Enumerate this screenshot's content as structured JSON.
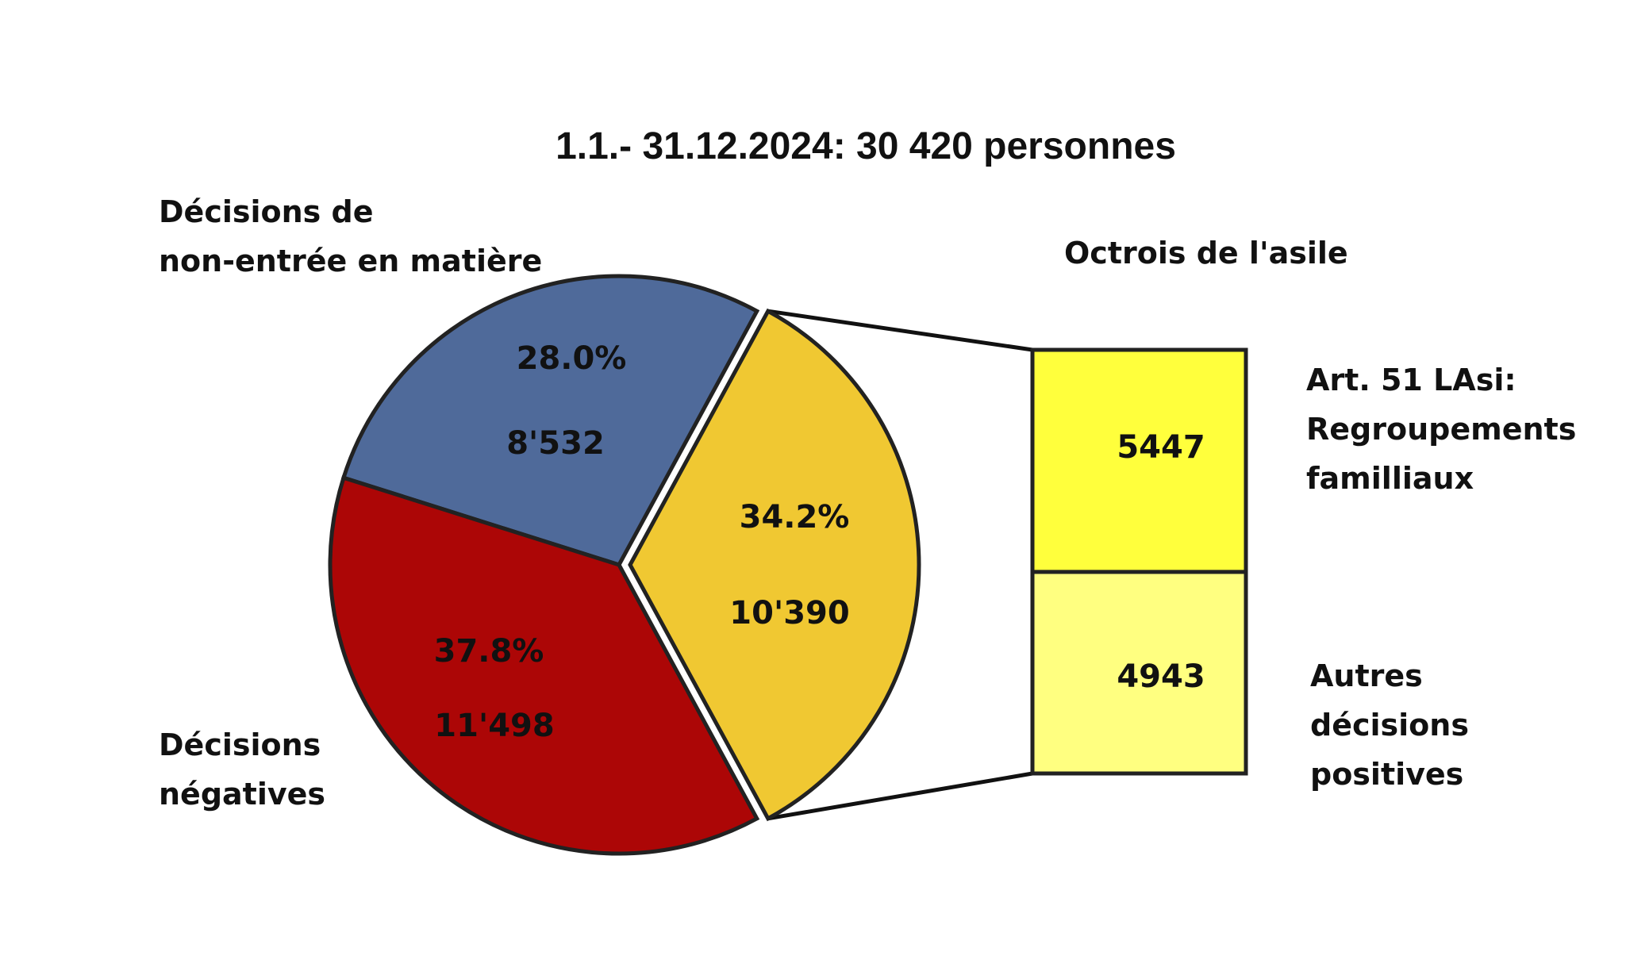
{
  "chart_data": {
    "type": "pie",
    "title": "1.1.- 31.12.2024: 30 420 personnes",
    "slices": [
      {
        "label_lines": [
          "Décisions de",
          "non-entrée en matière"
        ],
        "percent": "28.0%",
        "count": "8'532",
        "value": 8532,
        "color": "#4f6a9a"
      },
      {
        "label_lines": [
          "Décisions",
          "négatives"
        ],
        "percent": "37.8%",
        "count": "11'498",
        "value": 11498,
        "color": "#ac0606"
      },
      {
        "label_lines": [],
        "percent": "34.2%",
        "count": "10'390",
        "value": 10390,
        "color": "#f0c832"
      }
    ],
    "breakdown": {
      "title": "Octrois de l'asile",
      "bars": [
        {
          "label_lines": [
            "Art. 51 LAsi:",
            "Regroupements",
            "familliaux"
          ],
          "value": 5447,
          "display": "5447",
          "color": "#ffff3c"
        },
        {
          "label_lines": [
            "Autres",
            "décisions",
            "positives"
          ],
          "value": 4943,
          "display": "4943",
          "color": "#ffff80"
        }
      ]
    }
  }
}
